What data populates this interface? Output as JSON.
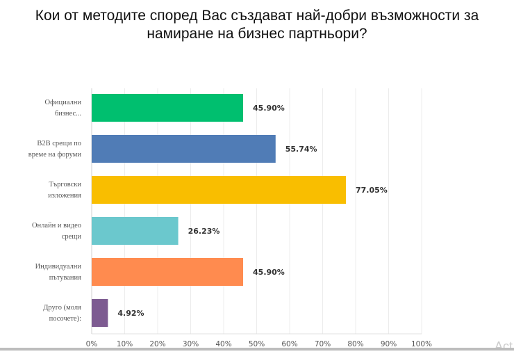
{
  "chart_data": {
    "type": "bar",
    "orientation": "horizontal",
    "title": "Кои от методите според Вас създават най-добри възможности за намиране на бизнес партньори?",
    "categories": [
      [
        "Официални",
        "бизнес..."
      ],
      [
        "B2B срещи по",
        "време на форуми"
      ],
      [
        "Търговски",
        "изложения"
      ],
      [
        "Онлайн и видео",
        "срещи"
      ],
      [
        "Индивидуални",
        "пътувания"
      ],
      [
        "Друго (моля",
        "посочете):"
      ]
    ],
    "values": [
      45.9,
      55.74,
      77.05,
      26.23,
      45.9,
      4.92
    ],
    "value_labels": [
      "45.90%",
      "55.74%",
      "77.05%",
      "26.23%",
      "45.90%",
      "4.92%"
    ],
    "colors": [
      "#00bf6f",
      "#507cb6",
      "#f9be00",
      "#6bc8cd",
      "#ff8b4f",
      "#7d5b91"
    ],
    "xlim": [
      0,
      100
    ],
    "ticks": [
      "0%",
      "10%",
      "20%",
      "30%",
      "40%",
      "50%",
      "60%",
      "70%",
      "80%",
      "90%",
      "100%"
    ],
    "grid": true
  },
  "watermark": "Act"
}
